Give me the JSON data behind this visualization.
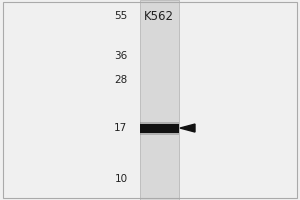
{
  "title": "K562",
  "mw_markers": [
    55,
    36,
    28,
    17,
    10
  ],
  "band_mw": 17,
  "bg_color": "#f0f0f0",
  "lane_bg_color": "#d8d8d8",
  "lane_edge_color": "#b0b0b0",
  "band_color": "#111111",
  "marker_text_color": "#222222",
  "title_color": "#222222",
  "title_fontsize": 8.5,
  "marker_fontsize": 7.5,
  "mw_log": [
    55,
    36,
    28,
    17,
    10
  ],
  "arrow_color": "#111111",
  "fig_width": 3.0,
  "fig_height": 2.0,
  "dpi": 100
}
